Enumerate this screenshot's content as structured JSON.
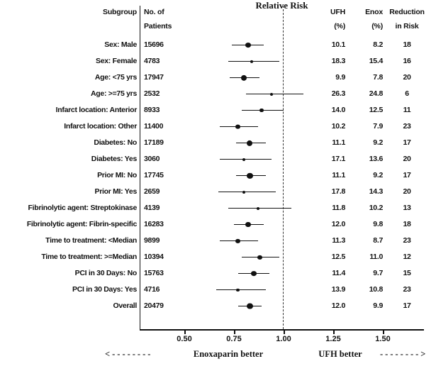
{
  "title": "Relative Risk",
  "columns": {
    "subgroup": "Subgroup",
    "patients_line1": "No. of",
    "patients_line2": "Patients",
    "ufh_line1": "UFH",
    "ufh_line2": "(%)",
    "enox_line1": "Enox",
    "enox_line2": "(%)",
    "reduction_line1": "Reduction",
    "reduction_line2": "in Risk"
  },
  "axis": {
    "ticks": [
      0.5,
      0.75,
      1.0,
      1.25,
      1.5
    ],
    "tick_labels": [
      "0.50",
      "0.75",
      "1.00",
      "1.25",
      "1.50"
    ],
    "reference_line": 1.0
  },
  "footer": {
    "left_arrow": "<--------",
    "left_label": "Enoxaparin better",
    "right_label": "UFH better",
    "right_arrow": "-------->"
  },
  "chart_data": {
    "type": "scatter",
    "variant": "forest-plot",
    "title": "Relative Risk",
    "xlim": [
      0.275,
      1.69
    ],
    "x_ticks": [
      0.5,
      0.75,
      1.0,
      1.25,
      1.5
    ],
    "reference_line": 1.0,
    "note": "rr, ci_low and ci_high are estimated from the plotted points/whiskers; they are not printed as text in the figure",
    "rows": [
      {
        "subgroup": "Sex: Male",
        "patients": "15696",
        "ufh": "10.1",
        "enox": "8.2",
        "reduction": "18",
        "rr": 0.82,
        "ci_low": 0.74,
        "ci_high": 0.9
      },
      {
        "subgroup": "Sex: Female",
        "patients": "4783",
        "ufh": "18.3",
        "enox": "15.4",
        "reduction": "16",
        "rr": 0.84,
        "ci_low": 0.72,
        "ci_high": 0.98
      },
      {
        "subgroup": "Age: <75 yrs",
        "patients": "17947",
        "ufh": "9.9",
        "enox": "7.8",
        "reduction": "20",
        "rr": 0.8,
        "ci_low": 0.73,
        "ci_high": 0.88
      },
      {
        "subgroup": "Age: >=75 yrs",
        "patients": "2532",
        "ufh": "26.3",
        "enox": "24.8",
        "reduction": "6",
        "rr": 0.94,
        "ci_low": 0.81,
        "ci_high": 1.1
      },
      {
        "subgroup": "Infarct location: Anterior",
        "patients": "8933",
        "ufh": "14.0",
        "enox": "12.5",
        "reduction": "11",
        "rr": 0.89,
        "ci_low": 0.79,
        "ci_high": 1.0
      },
      {
        "subgroup": "Infarct location: Other",
        "patients": "11400",
        "ufh": "10.2",
        "enox": "7.9",
        "reduction": "23",
        "rr": 0.77,
        "ci_low": 0.68,
        "ci_high": 0.87
      },
      {
        "subgroup": "Diabetes: No",
        "patients": "17189",
        "ufh": "11.1",
        "enox": "9.2",
        "reduction": "17",
        "rr": 0.83,
        "ci_low": 0.76,
        "ci_high": 0.91
      },
      {
        "subgroup": "Diabetes: Yes",
        "patients": "3060",
        "ufh": "17.1",
        "enox": "13.6",
        "reduction": "20",
        "rr": 0.8,
        "ci_low": 0.68,
        "ci_high": 0.94
      },
      {
        "subgroup": "Prior MI: No",
        "patients": "17745",
        "ufh": "11.1",
        "enox": "9.2",
        "reduction": "17",
        "rr": 0.83,
        "ci_low": 0.76,
        "ci_high": 0.91
      },
      {
        "subgroup": "Prior MI: Yes",
        "patients": "2659",
        "ufh": "17.8",
        "enox": "14.3",
        "reduction": "20",
        "rr": 0.8,
        "ci_low": 0.67,
        "ci_high": 0.96
      },
      {
        "subgroup": "Fibrinolytic agent: Streptokinase",
        "patients": "4139",
        "ufh": "11.8",
        "enox": "10.2",
        "reduction": "13",
        "rr": 0.87,
        "ci_low": 0.72,
        "ci_high": 1.04
      },
      {
        "subgroup": "Fibrinolytic agent: Fibrin-specific",
        "patients": "16283",
        "ufh": "12.0",
        "enox": "9.8",
        "reduction": "18",
        "rr": 0.82,
        "ci_low": 0.75,
        "ci_high": 0.9
      },
      {
        "subgroup": "Time to treatment: <Median",
        "patients": "9899",
        "ufh": "11.3",
        "enox": "8.7",
        "reduction": "23",
        "rr": 0.77,
        "ci_low": 0.68,
        "ci_high": 0.87
      },
      {
        "subgroup": "Time to treatment: >=Median",
        "patients": "10394",
        "ufh": "12.5",
        "enox": "11.0",
        "reduction": "12",
        "rr": 0.88,
        "ci_low": 0.79,
        "ci_high": 0.98
      },
      {
        "subgroup": "PCI in 30 Days: No",
        "patients": "15763",
        "ufh": "11.4",
        "enox": "9.7",
        "reduction": "15",
        "rr": 0.85,
        "ci_low": 0.77,
        "ci_high": 0.93
      },
      {
        "subgroup": "PCI in 30 Days: Yes",
        "patients": "4716",
        "ufh": "13.9",
        "enox": "10.8",
        "reduction": "23",
        "rr": 0.77,
        "ci_low": 0.66,
        "ci_high": 0.91
      },
      {
        "subgroup": "Overall",
        "patients": "20479",
        "ufh": "12.0",
        "enox": "9.9",
        "reduction": "17",
        "rr": 0.83,
        "ci_low": 0.77,
        "ci_high": 0.89
      }
    ]
  }
}
